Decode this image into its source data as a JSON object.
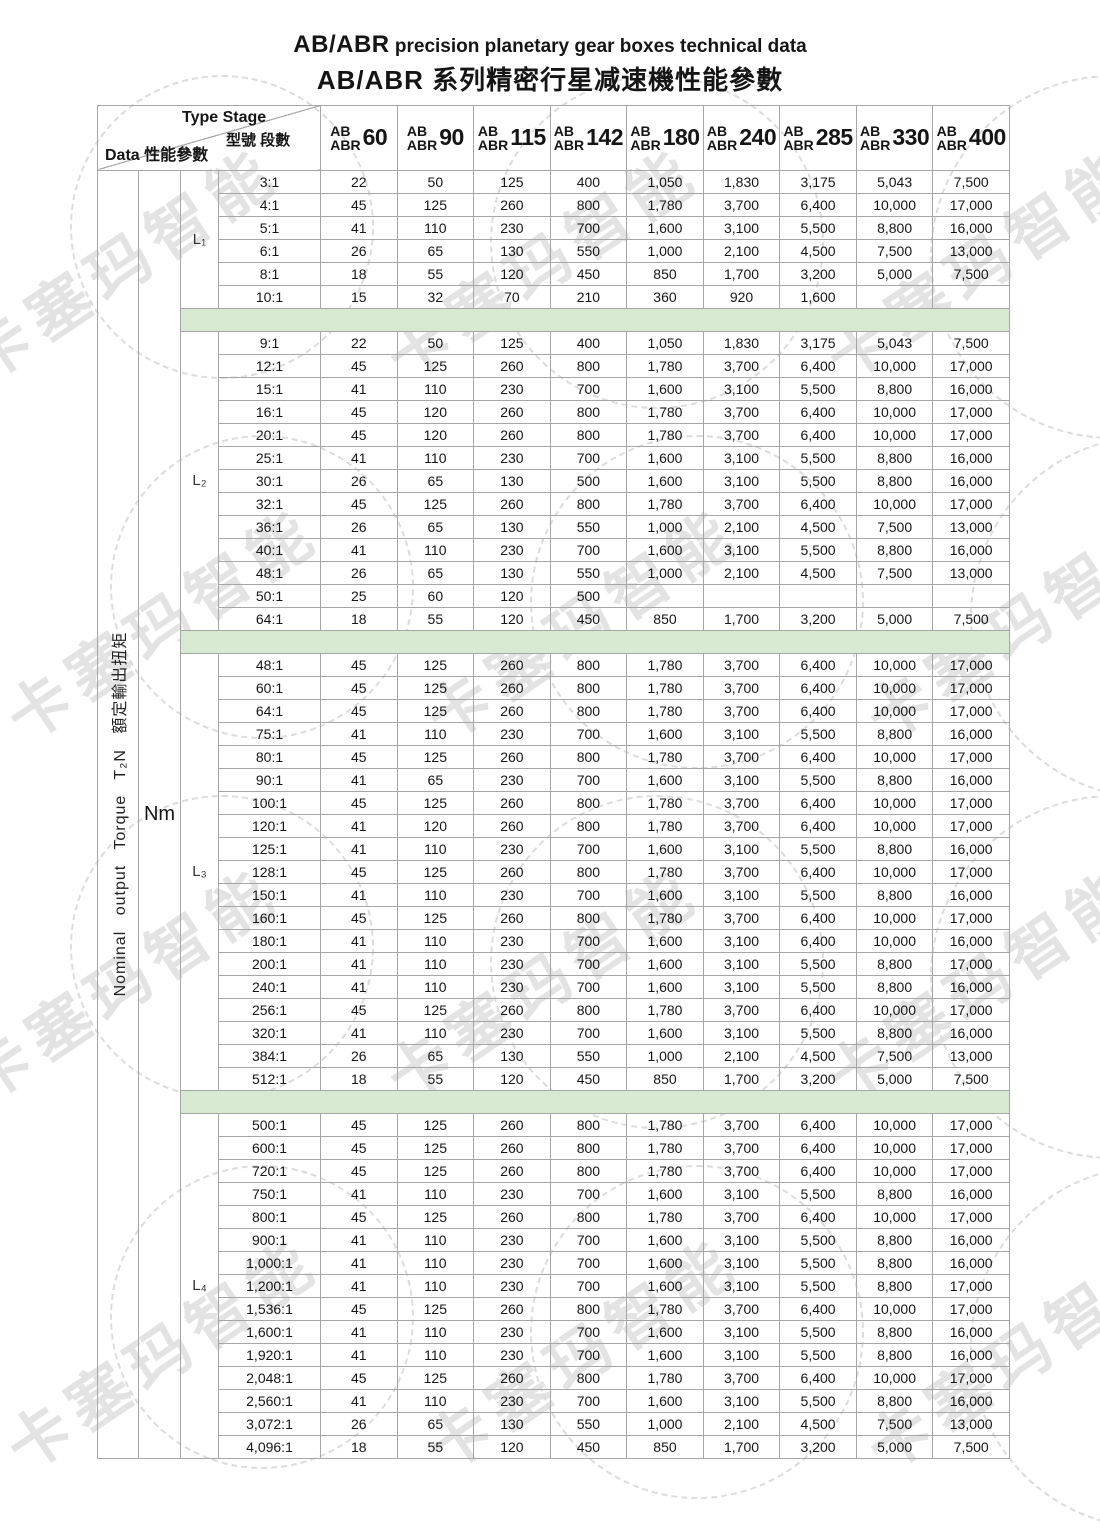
{
  "title": {
    "en_brand": "AB/ABR",
    "en_rest": "precision planetary gear boxes technical data",
    "zh": "AB/ABR 系列精密行星减速機性能參數"
  },
  "corner": {
    "type_stage_en": "Type Stage",
    "type_stage_zh": "型號 段數",
    "data_label": "Data 性能參數"
  },
  "left": {
    "vertical_label": "Nominal output Torque T₂N 額定輸出扭矩",
    "unit": "Nm"
  },
  "columns": [
    {
      "prefix_top": "AB",
      "prefix_bottom": "ABR",
      "size": "60"
    },
    {
      "prefix_top": "AB",
      "prefix_bottom": "ABR",
      "size": "90"
    },
    {
      "prefix_top": "AB",
      "prefix_bottom": "ABR",
      "size": "115"
    },
    {
      "prefix_top": "AB",
      "prefix_bottom": "ABR",
      "size": "142"
    },
    {
      "prefix_top": "AB",
      "prefix_bottom": "ABR",
      "size": "180"
    },
    {
      "prefix_top": "AB",
      "prefix_bottom": "ABR",
      "size": "240"
    },
    {
      "prefix_top": "AB",
      "prefix_bottom": "ABR",
      "size": "285"
    },
    {
      "prefix_top": "AB",
      "prefix_bottom": "ABR",
      "size": "330"
    },
    {
      "prefix_top": "AB",
      "prefix_bottom": "ABR",
      "size": "400"
    }
  ],
  "groups": [
    {
      "stage": "L₁",
      "rows": [
        {
          "ratio": "3:1",
          "values": [
            "22",
            "50",
            "125",
            "400",
            "1,050",
            "1,830",
            "3,175",
            "5,043",
            "7,500"
          ]
        },
        {
          "ratio": "4:1",
          "values": [
            "45",
            "125",
            "260",
            "800",
            "1,780",
            "3,700",
            "6,400",
            "10,000",
            "17,000"
          ]
        },
        {
          "ratio": "5:1",
          "values": [
            "41",
            "110",
            "230",
            "700",
            "1,600",
            "3,100",
            "5,500",
            "8,800",
            "16,000"
          ]
        },
        {
          "ratio": "6:1",
          "values": [
            "26",
            "65",
            "130",
            "550",
            "1,000",
            "2,100",
            "4,500",
            "7,500",
            "13,000"
          ]
        },
        {
          "ratio": "8:1",
          "values": [
            "18",
            "55",
            "120",
            "450",
            "850",
            "1,700",
            "3,200",
            "5,000",
            "7,500"
          ]
        },
        {
          "ratio": "10:1",
          "values": [
            "15",
            "32",
            "70",
            "210",
            "360",
            "920",
            "1,600",
            "",
            ""
          ]
        }
      ]
    },
    {
      "stage": "L₂",
      "rows": [
        {
          "ratio": "9:1",
          "values": [
            "22",
            "50",
            "125",
            "400",
            "1,050",
            "1,830",
            "3,175",
            "5,043",
            "7,500"
          ]
        },
        {
          "ratio": "12:1",
          "values": [
            "45",
            "125",
            "260",
            "800",
            "1,780",
            "3,700",
            "6,400",
            "10,000",
            "17,000"
          ]
        },
        {
          "ratio": "15:1",
          "values": [
            "41",
            "110",
            "230",
            "700",
            "1,600",
            "3,100",
            "5,500",
            "8,800",
            "16,000"
          ]
        },
        {
          "ratio": "16:1",
          "values": [
            "45",
            "120",
            "260",
            "800",
            "1,780",
            "3,700",
            "6,400",
            "10,000",
            "17,000"
          ]
        },
        {
          "ratio": "20:1",
          "values": [
            "45",
            "120",
            "260",
            "800",
            "1,780",
            "3,700",
            "6,400",
            "10,000",
            "17,000"
          ]
        },
        {
          "ratio": "25:1",
          "values": [
            "41",
            "110",
            "230",
            "700",
            "1,600",
            "3,100",
            "5,500",
            "8,800",
            "16,000"
          ]
        },
        {
          "ratio": "30:1",
          "values": [
            "26",
            "65",
            "130",
            "500",
            "1,600",
            "3,100",
            "5,500",
            "8,800",
            "16,000"
          ]
        },
        {
          "ratio": "32:1",
          "values": [
            "45",
            "125",
            "260",
            "800",
            "1,780",
            "3,700",
            "6,400",
            "10,000",
            "17,000"
          ]
        },
        {
          "ratio": "36:1",
          "values": [
            "26",
            "65",
            "130",
            "550",
            "1,000",
            "2,100",
            "4,500",
            "7,500",
            "13,000"
          ]
        },
        {
          "ratio": "40:1",
          "values": [
            "41",
            "110",
            "230",
            "700",
            "1,600",
            "3,100",
            "5,500",
            "8,800",
            "16,000"
          ]
        },
        {
          "ratio": "48:1",
          "values": [
            "26",
            "65",
            "130",
            "550",
            "1,000",
            "2,100",
            "4,500",
            "7,500",
            "13,000"
          ]
        },
        {
          "ratio": "50:1",
          "values": [
            "25",
            "60",
            "120",
            "500",
            "",
            "",
            "",
            "",
            ""
          ]
        },
        {
          "ratio": "64:1",
          "values": [
            "18",
            "55",
            "120",
            "450",
            "850",
            "1,700",
            "3,200",
            "5,000",
            "7,500"
          ]
        }
      ]
    },
    {
      "stage": "L₃",
      "rows": [
        {
          "ratio": "48:1",
          "values": [
            "45",
            "125",
            "260",
            "800",
            "1,780",
            "3,700",
            "6,400",
            "10,000",
            "17,000"
          ]
        },
        {
          "ratio": "60:1",
          "values": [
            "45",
            "125",
            "260",
            "800",
            "1,780",
            "3,700",
            "6,400",
            "10,000",
            "17,000"
          ]
        },
        {
          "ratio": "64:1",
          "values": [
            "45",
            "125",
            "260",
            "800",
            "1,780",
            "3,700",
            "6,400",
            "10,000",
            "17,000"
          ]
        },
        {
          "ratio": "75:1",
          "values": [
            "41",
            "110",
            "230",
            "700",
            "1,600",
            "3,100",
            "5,500",
            "8,800",
            "16,000"
          ]
        },
        {
          "ratio": "80:1",
          "values": [
            "45",
            "125",
            "260",
            "800",
            "1,780",
            "3,700",
            "6,400",
            "10,000",
            "17,000"
          ]
        },
        {
          "ratio": "90:1",
          "values": [
            "41",
            "65",
            "230",
            "700",
            "1,600",
            "3,100",
            "5,500",
            "8,800",
            "16,000"
          ]
        },
        {
          "ratio": "100:1",
          "values": [
            "45",
            "125",
            "260",
            "800",
            "1,780",
            "3,700",
            "6,400",
            "10,000",
            "17,000"
          ]
        },
        {
          "ratio": "120:1",
          "values": [
            "41",
            "120",
            "260",
            "800",
            "1,780",
            "3,700",
            "6,400",
            "10,000",
            "17,000"
          ]
        },
        {
          "ratio": "125:1",
          "values": [
            "41",
            "110",
            "230",
            "700",
            "1,600",
            "3,100",
            "5,500",
            "8,800",
            "16,000"
          ]
        },
        {
          "ratio": "128:1",
          "values": [
            "45",
            "125",
            "260",
            "800",
            "1,780",
            "3,700",
            "6,400",
            "10,000",
            "17,000"
          ]
        },
        {
          "ratio": "150:1",
          "values": [
            "41",
            "110",
            "230",
            "700",
            "1,600",
            "3,100",
            "5,500",
            "8,800",
            "16,000"
          ]
        },
        {
          "ratio": "160:1",
          "values": [
            "45",
            "125",
            "260",
            "800",
            "1,780",
            "3,700",
            "6,400",
            "10,000",
            "17,000"
          ]
        },
        {
          "ratio": "180:1",
          "values": [
            "41",
            "110",
            "230",
            "700",
            "1,600",
            "3,100",
            "6,400",
            "10,000",
            "16,000"
          ]
        },
        {
          "ratio": "200:1",
          "values": [
            "41",
            "110",
            "230",
            "700",
            "1,600",
            "3,100",
            "5,500",
            "8,800",
            "17,000"
          ]
        },
        {
          "ratio": "240:1",
          "values": [
            "41",
            "110",
            "230",
            "700",
            "1,600",
            "3,100",
            "5,500",
            "8,800",
            "16,000"
          ]
        },
        {
          "ratio": "256:1",
          "values": [
            "45",
            "125",
            "260",
            "800",
            "1,780",
            "3,700",
            "6,400",
            "10,000",
            "17,000"
          ]
        },
        {
          "ratio": "320:1",
          "values": [
            "41",
            "110",
            "230",
            "700",
            "1,600",
            "3,100",
            "5,500",
            "8,800",
            "16,000"
          ]
        },
        {
          "ratio": "384:1",
          "values": [
            "26",
            "65",
            "130",
            "550",
            "1,000",
            "2,100",
            "4,500",
            "7,500",
            "13,000"
          ]
        },
        {
          "ratio": "512:1",
          "values": [
            "18",
            "55",
            "120",
            "450",
            "850",
            "1,700",
            "3,200",
            "5,000",
            "7,500"
          ]
        }
      ]
    },
    {
      "stage": "L₄",
      "rows": [
        {
          "ratio": "500:1",
          "values": [
            "45",
            "125",
            "260",
            "800",
            "1,780",
            "3,700",
            "6,400",
            "10,000",
            "17,000"
          ]
        },
        {
          "ratio": "600:1",
          "values": [
            "45",
            "125",
            "260",
            "800",
            "1,780",
            "3,700",
            "6,400",
            "10,000",
            "17,000"
          ]
        },
        {
          "ratio": "720:1",
          "values": [
            "45",
            "125",
            "260",
            "800",
            "1,780",
            "3,700",
            "6,400",
            "10,000",
            "17,000"
          ]
        },
        {
          "ratio": "750:1",
          "values": [
            "41",
            "110",
            "230",
            "700",
            "1,600",
            "3,100",
            "5,500",
            "8,800",
            "16,000"
          ]
        },
        {
          "ratio": "800:1",
          "values": [
            "45",
            "125",
            "260",
            "800",
            "1,780",
            "3,700",
            "6,400",
            "10,000",
            "17,000"
          ]
        },
        {
          "ratio": "900:1",
          "values": [
            "41",
            "110",
            "230",
            "700",
            "1,600",
            "3,100",
            "5,500",
            "8,800",
            "16,000"
          ]
        },
        {
          "ratio": "1,000:1",
          "values": [
            "41",
            "110",
            "230",
            "700",
            "1,600",
            "3,100",
            "5,500",
            "8,800",
            "16,000"
          ]
        },
        {
          "ratio": "1,200:1",
          "values": [
            "41",
            "110",
            "230",
            "700",
            "1,600",
            "3,100",
            "5,500",
            "8,800",
            "17,000"
          ]
        },
        {
          "ratio": "1,536:1",
          "values": [
            "45",
            "125",
            "260",
            "800",
            "1,780",
            "3,700",
            "6,400",
            "10,000",
            "17,000"
          ]
        },
        {
          "ratio": "1,600:1",
          "values": [
            "41",
            "110",
            "230",
            "700",
            "1,600",
            "3,100",
            "5,500",
            "8,800",
            "16,000"
          ]
        },
        {
          "ratio": "1,920:1",
          "values": [
            "41",
            "110",
            "230",
            "700",
            "1,600",
            "3,100",
            "5,500",
            "8,800",
            "16,000"
          ]
        },
        {
          "ratio": "2,048:1",
          "values": [
            "45",
            "125",
            "260",
            "800",
            "1,780",
            "3,700",
            "6,400",
            "10,000",
            "17,000"
          ]
        },
        {
          "ratio": "2,560:1",
          "values": [
            "41",
            "110",
            "230",
            "700",
            "1,600",
            "3,100",
            "5,500",
            "8,800",
            "16,000"
          ]
        },
        {
          "ratio": "3,072:1",
          "values": [
            "26",
            "65",
            "130",
            "550",
            "1,000",
            "2,100",
            "4,500",
            "7,500",
            "13,000"
          ]
        },
        {
          "ratio": "4,096:1",
          "values": [
            "18",
            "55",
            "120",
            "450",
            "850",
            "1,700",
            "3,200",
            "5,000",
            "7,500"
          ]
        }
      ]
    }
  ],
  "watermark": {
    "text": "卡塞玛智能"
  },
  "colors": {
    "separator_green": "#d7e9d1",
    "border_gray": "#a6a6a6",
    "watermark_text": "#e3e3e3",
    "watermark_dash": "#dcdcdc"
  }
}
